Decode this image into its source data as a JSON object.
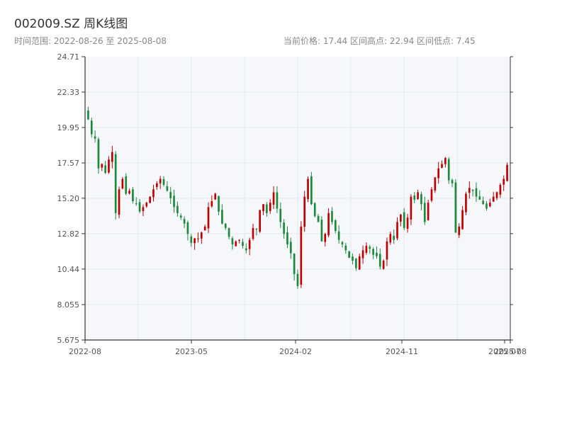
{
  "header": {
    "title": "002009.SZ 周K线图",
    "range_text": "时间范围: 2022-08-26 至 2025-08-08",
    "stats_text": "当前价格: 17.44  区间高点: 22.94  区间低点: 7.45"
  },
  "colors": {
    "up": "#c00000",
    "down": "#1a8a3a",
    "plot_bg": "#f5f7fa",
    "grid": "#e4e7ec",
    "axis": "#333333"
  },
  "chart_data": {
    "type": "candlestick",
    "title": "002009.SZ 周K线图",
    "interval": "weekly",
    "start_date": "2022-08-26",
    "end_date": "2025-08-08",
    "current_price": 17.44,
    "period_high": 22.94,
    "period_low": 7.45,
    "ylim": [
      5.675,
      24.71
    ],
    "y_ticks": [
      "5.675",
      "8.055",
      "10.44",
      "12.82",
      "15.20",
      "17.57",
      "19.95",
      "22.33",
      "24.71"
    ],
    "x_ticks": [
      "2022-08",
      "2023-05",
      "2024-02",
      "2024-11",
      "2025-07",
      "2025-08"
    ],
    "grid": true,
    "close": [
      20.5,
      19.5,
      19.2,
      17.2,
      17.5,
      16.9,
      17.8,
      18.3,
      14.2,
      15.8,
      16.5,
      15.5,
      15.7,
      15.0,
      14.8,
      14.3,
      14.6,
      14.9,
      15.3,
      15.8,
      16.2,
      16.5,
      16.1,
      15.7,
      15.2,
      14.6,
      14.2,
      13.9,
      13.5,
      12.8,
      12.2,
      12.5,
      12.5,
      12.9,
      13.3,
      14.6,
      15.0,
      15.5,
      14.3,
      13.5,
      13.2,
      12.6,
      12.1,
      12.3,
      12.4,
      12.0,
      11.7,
      12.4,
      13.2,
      13.1,
      14.4,
      14.8,
      14.2,
      14.9,
      15.6,
      14.5,
      13.6,
      12.8,
      12.1,
      11.5,
      10.1,
      9.3,
      13.3,
      15.3,
      16.5,
      14.8,
      14.0,
      13.6,
      12.3,
      12.8,
      14.2,
      13.6,
      13.0,
      12.4,
      12.1,
      11.7,
      11.2,
      11.0,
      10.5,
      11.3,
      11.7,
      12.0,
      11.8,
      11.4,
      11.3,
      10.6,
      11.0,
      12.3,
      12.8,
      12.4,
      13.6,
      14.1,
      13.2,
      13.9,
      15.3,
      15.1,
      15.6,
      14.8,
      13.6,
      14.9,
      15.8,
      16.6,
      17.2,
      17.5,
      17.9,
      16.4,
      16.2,
      12.9,
      13.3,
      14.4,
      15.5,
      15.9,
      15.7,
      15.3,
      15.1,
      14.8,
      14.5,
      14.9,
      15.3,
      15.6,
      16.1,
      16.5,
      17.44
    ],
    "series_note": "one candle per week; close values estimated from the plot"
  }
}
